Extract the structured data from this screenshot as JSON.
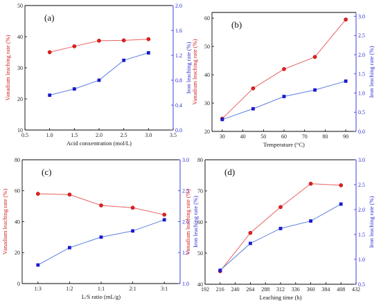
{
  "chart_data": [
    {
      "id": "a",
      "type": "line",
      "panel_label": "(a)",
      "xlabel": "Acid conxentration (mol/L)",
      "ylabel": "Vanadium leaching rate (%)",
      "y2label": "Iron leaching rate (%)",
      "xlim": [
        0.5,
        3.5
      ],
      "xticks": [
        0.5,
        1.0,
        1.5,
        2.0,
        2.5,
        3.0,
        3.5
      ],
      "xtick_labels": [
        "0.5",
        "1.0",
        "1.5",
        "2.0",
        "2.5",
        "3.0",
        "3.5"
      ],
      "ylim": [
        10,
        50
      ],
      "yticks": [
        10,
        20,
        30,
        40,
        50
      ],
      "ytick_labels": [
        "10",
        "20",
        "30",
        "40",
        "50"
      ],
      "y2lim": [
        0.0,
        2.0
      ],
      "y2ticks": [
        0.0,
        0.4,
        0.8,
        1.2,
        1.6,
        2.0
      ],
      "y2tick_labels": [
        "0.0",
        "0.4",
        "0.8",
        "1.2",
        "1.6",
        "2.0"
      ],
      "x": [
        1.0,
        1.5,
        2.0,
        2.5,
        3.0
      ],
      "series": [
        {
          "axis": "left",
          "color": "#e32020",
          "values": [
            35.0,
            36.9,
            38.7,
            38.8,
            39.2
          ]
        },
        {
          "axis": "right",
          "color": "#1a1ad0",
          "values": [
            0.56,
            0.66,
            0.8,
            1.12,
            1.24
          ]
        }
      ]
    },
    {
      "id": "b",
      "type": "line",
      "panel_label": "(b)",
      "xlabel": "Temperature (°C)",
      "ylabel": "Vanadium leaching rate (%)",
      "y2label": "Iron leaching rate (%)",
      "xlim": [
        25,
        95
      ],
      "xticks": [
        30,
        40,
        50,
        60,
        70,
        80,
        90
      ],
      "xtick_labels": [
        "30",
        "40",
        "50",
        "60",
        "70",
        "80",
        "90"
      ],
      "ylim": [
        20,
        62
      ],
      "yticks": [
        20,
        30,
        40,
        50,
        60
      ],
      "ytick_labels": [
        "20",
        "30",
        "40",
        "50",
        "60"
      ],
      "y2lim": [
        0.0,
        3.1
      ],
      "y2ticks": [
        0.0,
        0.5,
        1.0,
        1.5,
        2.0,
        2.5,
        3.0
      ],
      "y2tick_labels": [
        "0.0",
        "0.5",
        "1.0",
        "1.5",
        "2.0",
        "2.5",
        "3.0"
      ],
      "x": [
        30,
        45,
        60,
        75,
        90
      ],
      "series": [
        {
          "axis": "left",
          "color": "#e32020",
          "values": [
            24.5,
            35.2,
            42.0,
            46.3,
            59.5
          ]
        },
        {
          "axis": "right",
          "color": "#1a1ad0",
          "values": [
            0.31,
            0.59,
            0.91,
            1.08,
            1.31
          ]
        }
      ]
    },
    {
      "id": "c",
      "type": "line",
      "panel_label": "(c)",
      "xlabel": "L/S ratio (mL/g)",
      "ylabel": "Vanadium leaching rate (%)",
      "y2label": "Iron leaching rate (%)",
      "categories": [
        "1:3",
        "1:2",
        "1:1",
        "2:1",
        "3:1"
      ],
      "ylim": [
        0,
        80
      ],
      "yticks": [
        0,
        20,
        40,
        60,
        80
      ],
      "ytick_labels": [
        "0",
        "20",
        "40",
        "60",
        "80"
      ],
      "y2lim": [
        1.0,
        3.0
      ],
      "y2ticks": [
        1.0,
        1.5,
        2.0,
        2.5,
        3.0
      ],
      "y2tick_labels": [
        "1.0",
        "1.5",
        "2.0",
        "2.5",
        "3.0"
      ],
      "series": [
        {
          "axis": "left",
          "color": "#e32020",
          "values": [
            58.0,
            57.5,
            50.5,
            49.0,
            44.5
          ]
        },
        {
          "axis": "right",
          "color": "#1a1ad0",
          "values": [
            1.3,
            1.58,
            1.75,
            1.85,
            2.03
          ]
        }
      ]
    },
    {
      "id": "d",
      "type": "line",
      "panel_label": "(d)",
      "xlabel": "Leaching time (h)",
      "ylabel": "Vanadium leaching rate (%)",
      "y2label": "Iron leaching rate (%)",
      "xlim": [
        192,
        432
      ],
      "xticks": [
        192,
        216,
        240,
        264,
        288,
        312,
        336,
        360,
        384,
        408,
        432
      ],
      "xtick_labels": [
        "192",
        "216",
        "240",
        "264",
        "288",
        "312",
        "336",
        "360",
        "384",
        "408",
        "432"
      ],
      "ylim": [
        40,
        80
      ],
      "yticks": [
        40,
        50,
        60,
        70,
        80
      ],
      "ytick_labels": [
        "40",
        "50",
        "60",
        "70",
        "80"
      ],
      "y2lim": [
        0.5,
        3.0
      ],
      "y2ticks": [
        0.5,
        1.0,
        1.5,
        2.0,
        2.5,
        3.0
      ],
      "y2tick_labels": [
        "0.5",
        "1.0",
        "1.5",
        "2.0",
        "2.5",
        "3.0"
      ],
      "x": [
        216,
        264,
        312,
        360,
        408
      ],
      "series": [
        {
          "axis": "left",
          "color": "#e32020",
          "values": [
            44.2,
            56.5,
            64.8,
            72.3,
            71.8
          ]
        },
        {
          "axis": "right",
          "color": "#1a1ad0",
          "values": [
            0.78,
            1.32,
            1.62,
            1.77,
            2.11
          ]
        }
      ]
    }
  ]
}
